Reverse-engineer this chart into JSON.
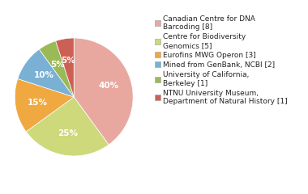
{
  "labels": [
    "Canadian Centre for DNA\nBarcoding [8]",
    "Centre for Biodiversity\nGenomics [5]",
    "Eurofins MWG Operon [3]",
    "Mined from GenBank, NCBI [2]",
    "University of California,\nBerkeley [1]",
    "NTNU University Museum,\nDepartment of Natural History [1]"
  ],
  "values": [
    40,
    25,
    15,
    10,
    5,
    5
  ],
  "colors": [
    "#e8a8a0",
    "#cdd97a",
    "#f0a840",
    "#7ab0d4",
    "#9aba58",
    "#cc6055"
  ],
  "pct_labels": [
    "40%",
    "25%",
    "15%",
    "10%",
    "5%",
    "5%"
  ],
  "startangle": 90,
  "counterclock": false,
  "background_color": "#ffffff",
  "text_fontsize": 6.5,
  "pct_fontsize": 7.5,
  "pct_color": "white",
  "pct_r": 0.62
}
